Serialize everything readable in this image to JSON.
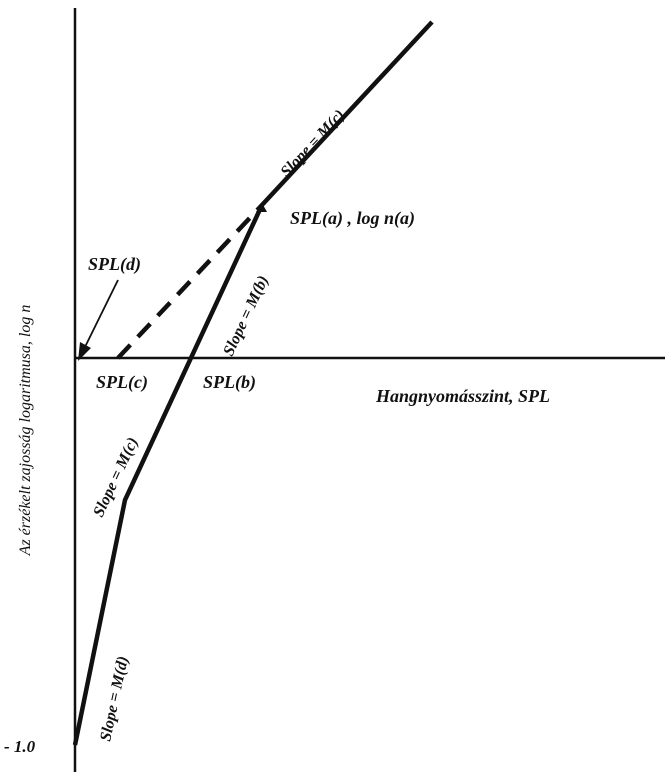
{
  "diagram": {
    "y_axis_label": "Az érzékelt zajosság logaritmusa, log n",
    "x_axis_label": "Hangnyomásszint, SPL",
    "y_tick_label": "- 1.0",
    "point_labels": {
      "spl_a": "SPL(a) , log n(a)",
      "spl_b": "SPL(b)",
      "spl_c": "SPL(c)",
      "spl_d": "SPL(d)"
    },
    "slope_labels": {
      "m_c_upper": "Slope = M(c)",
      "m_b": "Slope = M(b)",
      "m_c_lower": "Slope = M(c)",
      "m_d": "Slope = M(d)"
    },
    "line_color": "#111111"
  }
}
